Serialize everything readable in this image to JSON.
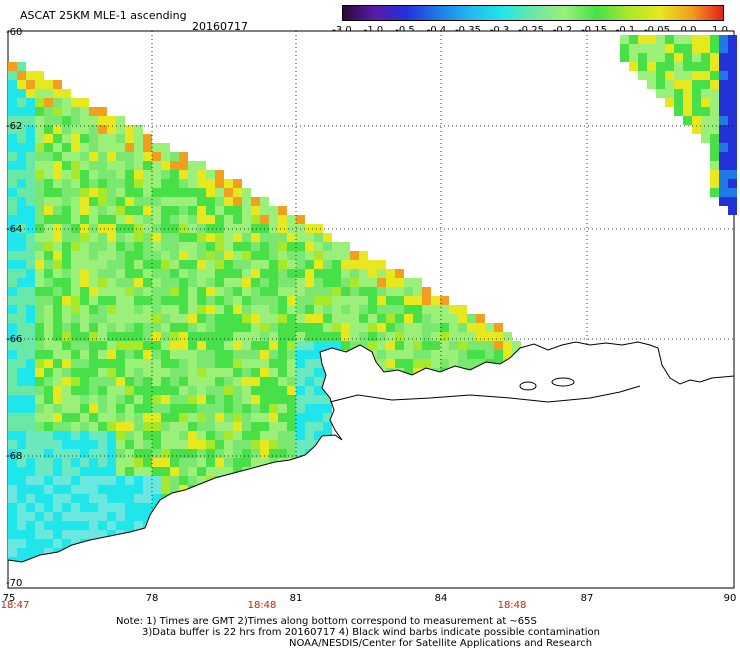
{
  "header": {
    "title": "ASCAT 25KM MLE-1 ascending",
    "date": "20160717"
  },
  "colorbar": {
    "labels": [
      "-3.0",
      "-1.0",
      "-0.5",
      "-0.4",
      "-0.35",
      "-0.3",
      "-0.25",
      "-0.2",
      "-0.15",
      "-0.1",
      "-0.05",
      "0.0",
      "1.0"
    ],
    "colors": [
      "#2a0a3a",
      "#5a1aa8",
      "#2232d8",
      "#1f7ae8",
      "#22b8ee",
      "#1ee6ea",
      "#6ae8a8",
      "#9af078",
      "#48e048",
      "#a8e82a",
      "#e8e81e",
      "#f0a01e",
      "#e81e1e"
    ]
  },
  "map": {
    "lat_labels": [
      "-60",
      "-62",
      "-64",
      "-66",
      "-68",
      "-70"
    ],
    "lon_labels": [
      "75",
      "78",
      "81",
      "84",
      "87",
      "90"
    ],
    "time_labels": [
      "18:47",
      "18:48",
      "18:48"
    ]
  },
  "footer": {
    "note1": "Note: 1) Times are GMT 2)Times along bottom correspond to measurement at ~65S",
    "note2": "3)Data buffer is 22 hrs from 20160717 4) Black wind barbs indicate possible contamination",
    "credit": "NOAA/NESDIS/Center for Satellite Applications and Research"
  }
}
